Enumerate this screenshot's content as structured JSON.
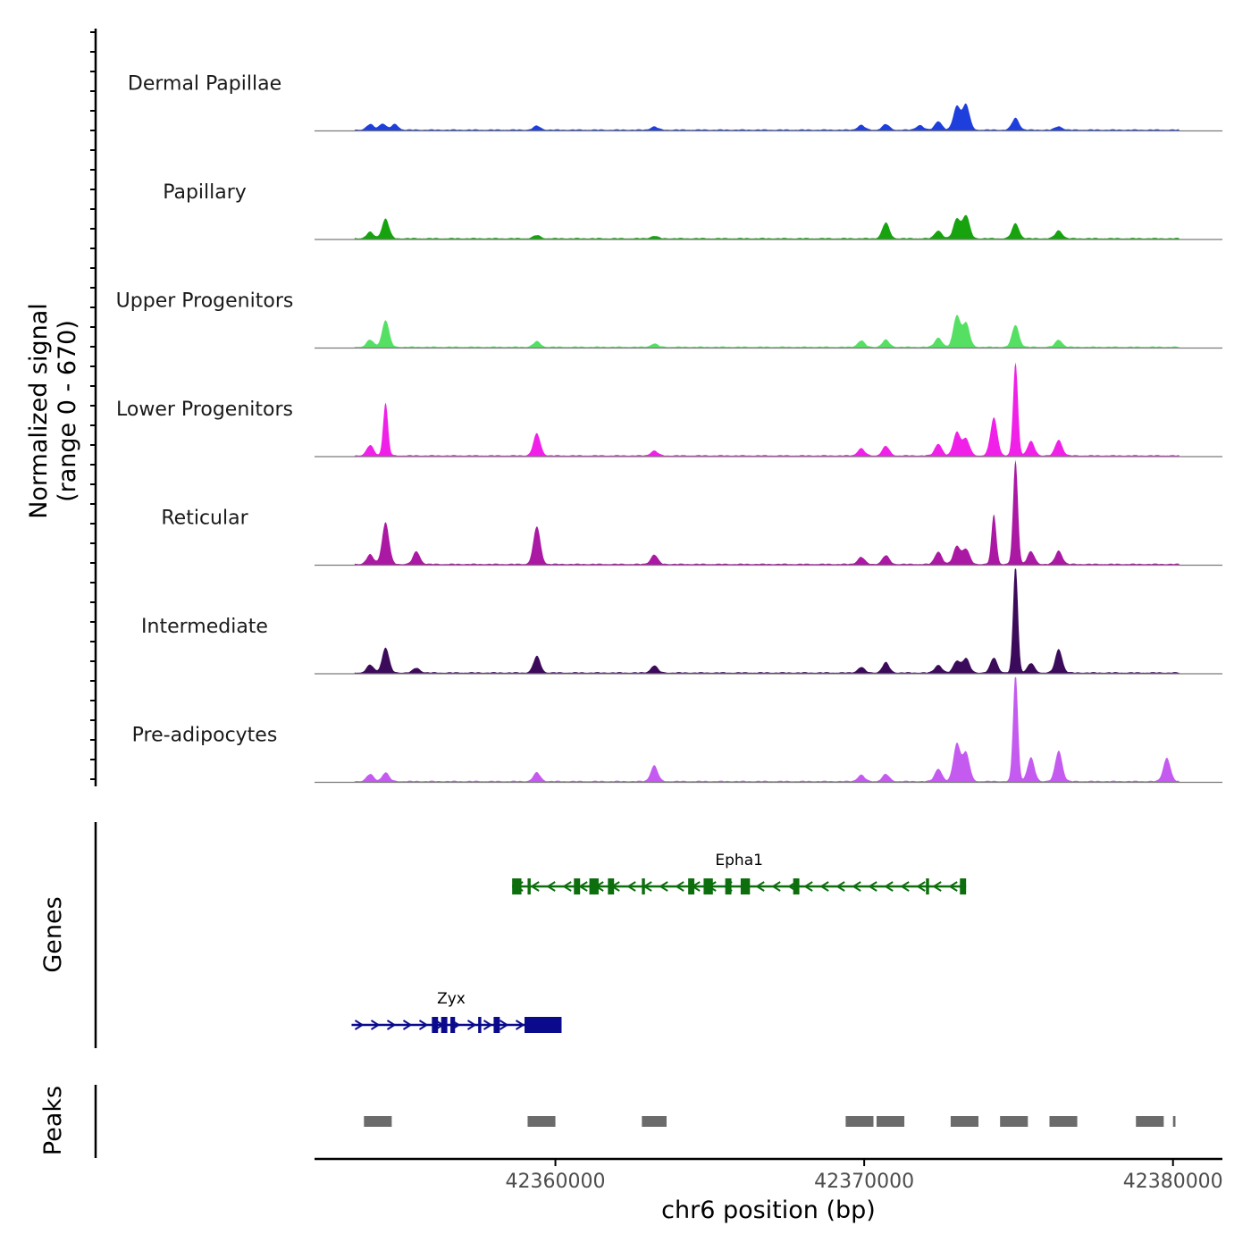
{
  "chart_data": {
    "type": "area",
    "ylabel_line1": "Normalized signal",
    "ylabel_line2": "(range 0 - 670)",
    "y_range": [
      0,
      670
    ],
    "xlabel": "chr6 position (bp)",
    "x_range": [
      42352200,
      42381600
    ],
    "x_ticks": [
      42360000,
      42370000,
      42380000
    ],
    "x_tick_labels": [
      "42360000",
      "42370000",
      "42380000"
    ],
    "tracks": [
      {
        "name": "Dermal Papillae",
        "color": "#1f3fdc",
        "peaks": [
          [
            42354000,
            35
          ],
          [
            42354400,
            40
          ],
          [
            42354800,
            35
          ],
          [
            42359400,
            25
          ],
          [
            42363200,
            20
          ],
          [
            42369900,
            30
          ],
          [
            42370700,
            35
          ],
          [
            42371800,
            30
          ],
          [
            42372400,
            55
          ],
          [
            42373000,
            150
          ],
          [
            42373300,
            160
          ],
          [
            42374900,
            75
          ],
          [
            42376300,
            22
          ]
        ]
      },
      {
        "name": "Papillary",
        "color": "#16a30e",
        "peaks": [
          [
            42354000,
            40
          ],
          [
            42354500,
            125
          ],
          [
            42359400,
            20
          ],
          [
            42363200,
            15
          ],
          [
            42370700,
            100
          ],
          [
            42372400,
            50
          ],
          [
            42373000,
            125
          ],
          [
            42373300,
            145
          ],
          [
            42374900,
            95
          ],
          [
            42376300,
            50
          ]
        ]
      },
      {
        "name": "Upper Progenitors",
        "color": "#55e063",
        "peaks": [
          [
            42354000,
            45
          ],
          [
            42354500,
            170
          ],
          [
            42359400,
            35
          ],
          [
            42363200,
            20
          ],
          [
            42369900,
            40
          ],
          [
            42370700,
            45
          ],
          [
            42372400,
            60
          ],
          [
            42373000,
            200
          ],
          [
            42373300,
            150
          ],
          [
            42374900,
            140
          ],
          [
            42376300,
            45
          ]
        ]
      },
      {
        "name": "Lower Progenitors",
        "color": "#f020e8",
        "peaks": [
          [
            42354000,
            65
          ],
          [
            42354500,
            335
          ],
          [
            42359400,
            140
          ],
          [
            42363200,
            30
          ],
          [
            42369900,
            45
          ],
          [
            42370700,
            60
          ],
          [
            42372400,
            75
          ],
          [
            42373000,
            150
          ],
          [
            42373300,
            105
          ],
          [
            42374200,
            240
          ],
          [
            42374900,
            590
          ],
          [
            42375400,
            90
          ],
          [
            42376300,
            100
          ]
        ]
      },
      {
        "name": "Reticular",
        "color": "#ab18a3",
        "peaks": [
          [
            42354000,
            60
          ],
          [
            42354500,
            265
          ],
          [
            42355500,
            80
          ],
          [
            42359400,
            240
          ],
          [
            42363200,
            60
          ],
          [
            42369900,
            45
          ],
          [
            42370700,
            55
          ],
          [
            42372400,
            80
          ],
          [
            42373000,
            115
          ],
          [
            42373300,
            95
          ],
          [
            42374200,
            315
          ],
          [
            42374900,
            660
          ],
          [
            42375400,
            80
          ],
          [
            42376300,
            85
          ]
        ]
      },
      {
        "name": "Intermediate",
        "color": "#3c0a5a",
        "peaks": [
          [
            42354000,
            50
          ],
          [
            42354500,
            160
          ],
          [
            42355500,
            30
          ],
          [
            42359400,
            105
          ],
          [
            42363200,
            45
          ],
          [
            42369900,
            35
          ],
          [
            42370700,
            65
          ],
          [
            42372400,
            50
          ],
          [
            42373000,
            75
          ],
          [
            42373300,
            90
          ],
          [
            42374200,
            95
          ],
          [
            42374900,
            690
          ],
          [
            42375400,
            60
          ],
          [
            42376300,
            150
          ]
        ]
      },
      {
        "name": "Pre-adipocytes",
        "color": "#c45af0",
        "peaks": [
          [
            42354000,
            45
          ],
          [
            42354500,
            55
          ],
          [
            42359400,
            55
          ],
          [
            42363200,
            100
          ],
          [
            42369900,
            40
          ],
          [
            42370700,
            45
          ],
          [
            42372400,
            80
          ],
          [
            42373000,
            240
          ],
          [
            42373300,
            180
          ],
          [
            42374900,
            690
          ],
          [
            42375400,
            150
          ],
          [
            42376300,
            195
          ],
          [
            42379800,
            150
          ]
        ]
      }
    ],
    "genes": [
      {
        "name": "Epha1",
        "color": "#0c6e0c",
        "strand": "-",
        "start": 42358600,
        "end": 42373300,
        "exons": [
          [
            42358600,
            42358900
          ],
          [
            42359100,
            42359200
          ],
          [
            42360600,
            42360800
          ],
          [
            42361100,
            42361400
          ],
          [
            42361700,
            42361900
          ],
          [
            42362800,
            42362900
          ],
          [
            42364300,
            42364500
          ],
          [
            42364800,
            42365100
          ],
          [
            42365500,
            42365700
          ],
          [
            42366000,
            42366300
          ],
          [
            42367700,
            42367900
          ],
          [
            42372000,
            42372100
          ],
          [
            42373100,
            42373300
          ]
        ]
      },
      {
        "name": "Zyx",
        "color": "#0a0a8c",
        "strand": "+",
        "start": 42353400,
        "end": 42360200,
        "exons": [
          [
            42356000,
            42356200
          ],
          [
            42356300,
            42356500
          ],
          [
            42356600,
            42356750
          ],
          [
            42357500,
            42357600
          ],
          [
            42358000,
            42358200
          ],
          [
            42359000,
            42360200
          ]
        ]
      }
    ],
    "peaks": [
      [
        42353800,
        42354700
      ],
      [
        42359100,
        42360000
      ],
      [
        42362800,
        42363600
      ],
      [
        42369400,
        42370300
      ],
      [
        42370400,
        42371300
      ],
      [
        42372800,
        42373700
      ],
      [
        42374400,
        42375300
      ],
      [
        42376000,
        42376900
      ],
      [
        42378800,
        42379700
      ],
      [
        42380000,
        42380080
      ]
    ],
    "panel_labels": {
      "genes": "Genes",
      "peaks": "Peaks"
    }
  }
}
